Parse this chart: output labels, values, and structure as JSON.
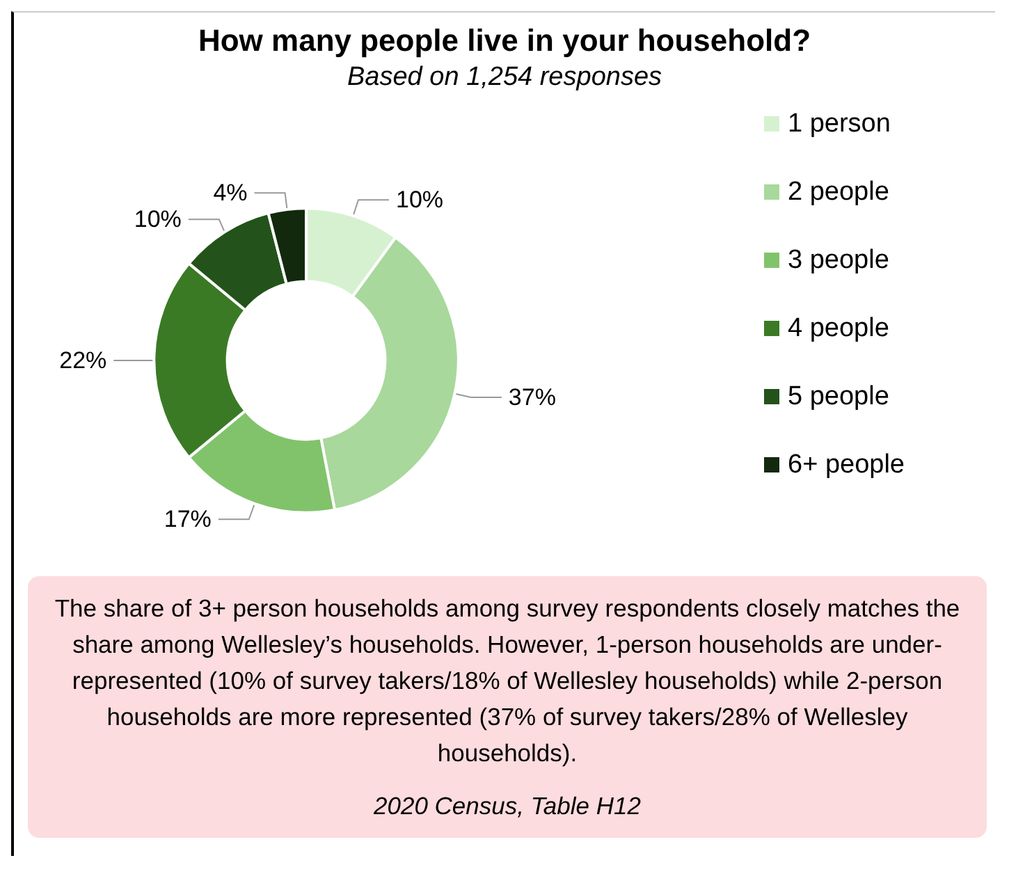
{
  "chart_data": {
    "type": "donut",
    "title": "How many people live in your household?",
    "subtitle": "Based on 1,254 responses",
    "categories": [
      "1 person",
      "2 people",
      "3 people",
      "4 people",
      "5 people",
      "6+ people"
    ],
    "values": [
      10,
      37,
      17,
      22,
      10,
      4
    ],
    "value_labels": [
      "10%",
      "37%",
      "17%",
      "22%",
      "10%",
      "4%"
    ],
    "colors": [
      "#d6f1cf",
      "#a8d89c",
      "#81c36b",
      "#3b7a25",
      "#23531a",
      "#13290d"
    ],
    "legend": "right",
    "annotations": [
      "The share of 3+ person households among survey respondents closely matches the share among Wellesley’s households. However, 1-person households are under-represented (10% of survey takers/18% of Wellesley households) while 2-person households are more represented (37% of survey takers/28% of Wellesley households).",
      "2020 Census, Table H12"
    ]
  }
}
